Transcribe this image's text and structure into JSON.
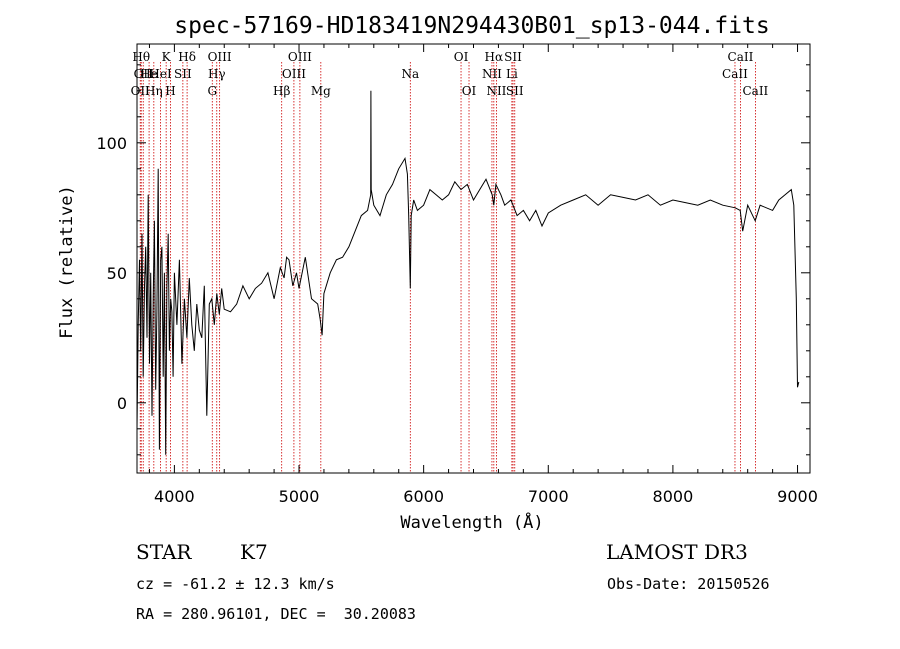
{
  "chart_data": {
    "type": "line",
    "title": "spec-57169-HD183419N294430B01_sp13-044.fits",
    "xlabel": "Wavelength (Å)",
    "ylabel": "Flux (relative)",
    "xlim": [
      3700,
      9100
    ],
    "ylim": [
      -27,
      138
    ],
    "x_ticks": [
      {
        "value": 4000,
        "label": "4000"
      },
      {
        "value": 5000,
        "label": "5000"
      },
      {
        "value": 6000,
        "label": "6000"
      },
      {
        "value": 7000,
        "label": "7000"
      },
      {
        "value": 8000,
        "label": "8000"
      },
      {
        "value": 9000,
        "label": "9000"
      }
    ],
    "y_ticks": [
      {
        "value": 0,
        "label": "0"
      },
      {
        "value": 50,
        "label": "50"
      },
      {
        "value": 100,
        "label": "100"
      }
    ],
    "line_color": "#000000",
    "marker_color": "#cc0000",
    "series": [
      {
        "name": "flux",
        "x": [
          3700,
          3710,
          3720,
          3730,
          3740,
          3750,
          3760,
          3770,
          3780,
          3790,
          3800,
          3810,
          3820,
          3830,
          3840,
          3850,
          3860,
          3870,
          3880,
          3890,
          3900,
          3910,
          3920,
          3930,
          3940,
          3950,
          3960,
          3970,
          3980,
          3990,
          4000,
          4020,
          4040,
          4060,
          4080,
          4100,
          4120,
          4140,
          4160,
          4180,
          4200,
          4220,
          4240,
          4260,
          4280,
          4300,
          4320,
          4340,
          4360,
          4380,
          4400,
          4450,
          4500,
          4550,
          4600,
          4650,
          4700,
          4750,
          4800,
          4850,
          4880,
          4900,
          4920,
          4950,
          4980,
          5000,
          5050,
          5100,
          5150,
          5170,
          5185,
          5200,
          5250,
          5300,
          5350,
          5400,
          5450,
          5500,
          5550,
          5575,
          5577,
          5579,
          5600,
          5650,
          5700,
          5750,
          5800,
          5850,
          5870,
          5880,
          5893,
          5900,
          5920,
          5950,
          6000,
          6050,
          6100,
          6150,
          6200,
          6250,
          6300,
          6350,
          6400,
          6450,
          6500,
          6550,
          6563,
          6580,
          6620,
          6650,
          6700,
          6750,
          6800,
          6850,
          6900,
          6950,
          7000,
          7100,
          7200,
          7300,
          7400,
          7500,
          7600,
          7700,
          7800,
          7900,
          8000,
          8100,
          8200,
          8300,
          8400,
          8500,
          8540,
          8560,
          8600,
          8660,
          8700,
          8800,
          8850,
          8900,
          8950,
          8970,
          8990,
          9000,
          9010
        ],
        "values": [
          -10,
          30,
          55,
          20,
          65,
          10,
          45,
          60,
          25,
          80,
          15,
          50,
          -5,
          40,
          70,
          5,
          35,
          90,
          -18,
          55,
          60,
          10,
          50,
          -20,
          45,
          65,
          20,
          40,
          35,
          10,
          50,
          30,
          55,
          15,
          40,
          25,
          48,
          30,
          20,
          38,
          28,
          25,
          45,
          -5,
          38,
          40,
          30,
          42,
          34,
          44,
          36,
          35,
          38,
          45,
          40,
          44,
          46,
          50,
          40,
          52,
          48,
          56,
          55,
          45,
          50,
          44,
          56,
          40,
          38,
          32,
          26,
          42,
          50,
          55,
          56,
          60,
          66,
          72,
          74,
          80,
          120,
          82,
          76,
          72,
          80,
          84,
          90,
          94,
          88,
          72,
          44,
          72,
          78,
          74,
          76,
          82,
          80,
          78,
          80,
          85,
          82,
          84,
          78,
          82,
          86,
          80,
          76,
          84,
          80,
          76,
          78,
          72,
          74,
          70,
          74,
          68,
          73,
          76,
          78,
          80,
          76,
          80,
          79,
          78,
          80,
          76,
          78,
          77,
          76,
          78,
          76,
          75,
          74,
          66,
          76,
          70,
          76,
          74,
          78,
          80,
          82,
          76,
          40,
          6,
          8
        ]
      }
    ],
    "line_markers": [
      {
        "wl": 3726,
        "label": "OII",
        "row": 2
      },
      {
        "wl": 3734,
        "label": "Hθ",
        "row": 0
      },
      {
        "wl": 3750,
        "label": "OII",
        "row": 1
      },
      {
        "wl": 3797,
        "label": "He",
        "row": 1
      },
      {
        "wl": 3835,
        "label": "Hη",
        "row": 2
      },
      {
        "wl": 3889,
        "label": "HeI",
        "row": 1
      },
      {
        "wl": 3934,
        "label": "K",
        "row": 0
      },
      {
        "wl": 3969,
        "label": "H",
        "row": 2
      },
      {
        "wl": 4068,
        "label": "SII",
        "row": 1
      },
      {
        "wl": 4102,
        "label": "Hδ",
        "row": 0
      },
      {
        "wl": 4304,
        "label": "G",
        "row": 2
      },
      {
        "wl": 4340,
        "label": "Hγ",
        "row": 1
      },
      {
        "wl": 4363,
        "label": "OIII",
        "row": 0
      },
      {
        "wl": 4861,
        "label": "Hβ",
        "row": 2
      },
      {
        "wl": 4959,
        "label": "OIII",
        "row": 1
      },
      {
        "wl": 5007,
        "label": "OIII",
        "row": 0
      },
      {
        "wl": 5175,
        "label": "Mg",
        "row": 2
      },
      {
        "wl": 5893,
        "label": "Na",
        "row": 1
      },
      {
        "wl": 6300,
        "label": "OI",
        "row": 0
      },
      {
        "wl": 6364,
        "label": "OI",
        "row": 2
      },
      {
        "wl": 6548,
        "label": "NII",
        "row": 1
      },
      {
        "wl": 6563,
        "label": "Hα",
        "row": 0
      },
      {
        "wl": 6584,
        "label": "NII",
        "row": 2
      },
      {
        "wl": 6708,
        "label": "Li",
        "row": 1
      },
      {
        "wl": 6717,
        "label": "SII",
        "row": 0
      },
      {
        "wl": 6731,
        "label": "SII",
        "row": 2
      },
      {
        "wl": 8498,
        "label": "CaII",
        "row": 1
      },
      {
        "wl": 8542,
        "label": "CaII",
        "row": 0
      },
      {
        "wl": 8662,
        "label": "CaII",
        "row": 2
      }
    ]
  },
  "info": {
    "object_class": "STAR",
    "subclass": "K7",
    "survey": "LAMOST DR3",
    "redshift_text": "cz = -61.2 ± 12.3 km/s",
    "obs_date_text": "Obs-Date: 20150526",
    "coords_text": "RA = 280.96101, DEC =  30.20083"
  }
}
